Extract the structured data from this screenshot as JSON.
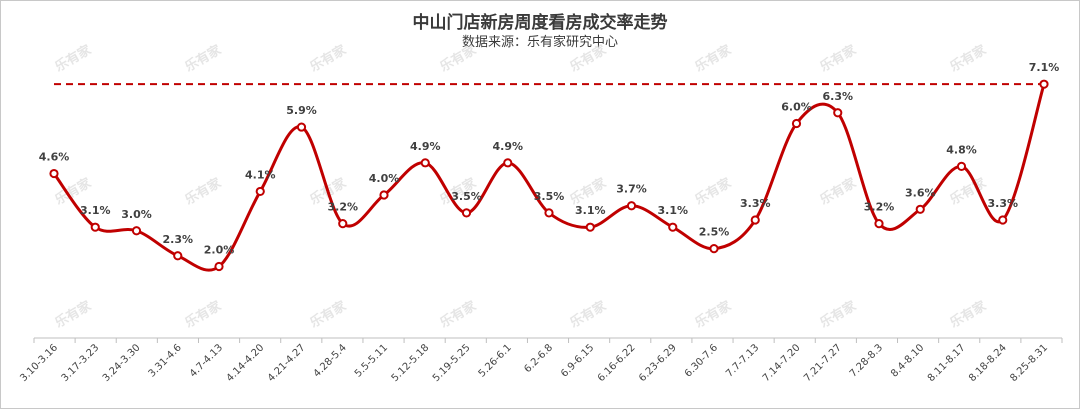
{
  "chart_data": {
    "type": "line",
    "title": "中山门店新房周度看房成交率走势",
    "subtitle": "数据来源：乐有家研究中心",
    "watermark": "乐有家",
    "xlabel": "",
    "ylabel": "",
    "ylim": [
      0,
      8
    ],
    "grid": false,
    "legend": "none",
    "line_color": "#c00000",
    "categories": [
      "3.10-3.16",
      "3.17-3.23",
      "3.24-3.30",
      "3.31-4.6",
      "4.7-4.13",
      "4.14-4.20",
      "4.21-4.27",
      "4.28-5.4",
      "5.5-5.11",
      "5.12-5.18",
      "5.19-5.25",
      "5.26-6.1",
      "6.2-6.8",
      "6.9-6.15",
      "6.16-6.22",
      "6.23-6.29",
      "6.30-7.6",
      "7.7-7.13",
      "7.14-7.20",
      "7.21-7.27",
      "7.28-8.3",
      "8.4-8.10",
      "8.11-8.17",
      "8.18-8.24",
      "8.25-8.31"
    ],
    "values": [
      4.6,
      3.1,
      3.0,
      2.3,
      2.0,
      4.1,
      5.9,
      3.2,
      4.0,
      4.9,
      3.5,
      4.9,
      3.5,
      3.1,
      3.7,
      3.1,
      2.5,
      3.3,
      6.0,
      6.3,
      3.2,
      3.6,
      4.8,
      3.3,
      7.1
    ],
    "data_labels": [
      "4.6%",
      "3.1%",
      "3.0%",
      "2.3%",
      "2.0%",
      "4.1%",
      "5.9%",
      "3.2%",
      "4.0%",
      "4.9%",
      "3.5%",
      "4.9%",
      "3.5%",
      "3.1%",
      "3.7%",
      "3.1%",
      "2.5%",
      "3.3%",
      "6.0%",
      "6.3%",
      "3.2%",
      "3.6%",
      "4.8%",
      "3.3%",
      "7.1%"
    ],
    "reference_line": {
      "value": 7.1,
      "style": "dashed",
      "color": "#c00000"
    }
  }
}
